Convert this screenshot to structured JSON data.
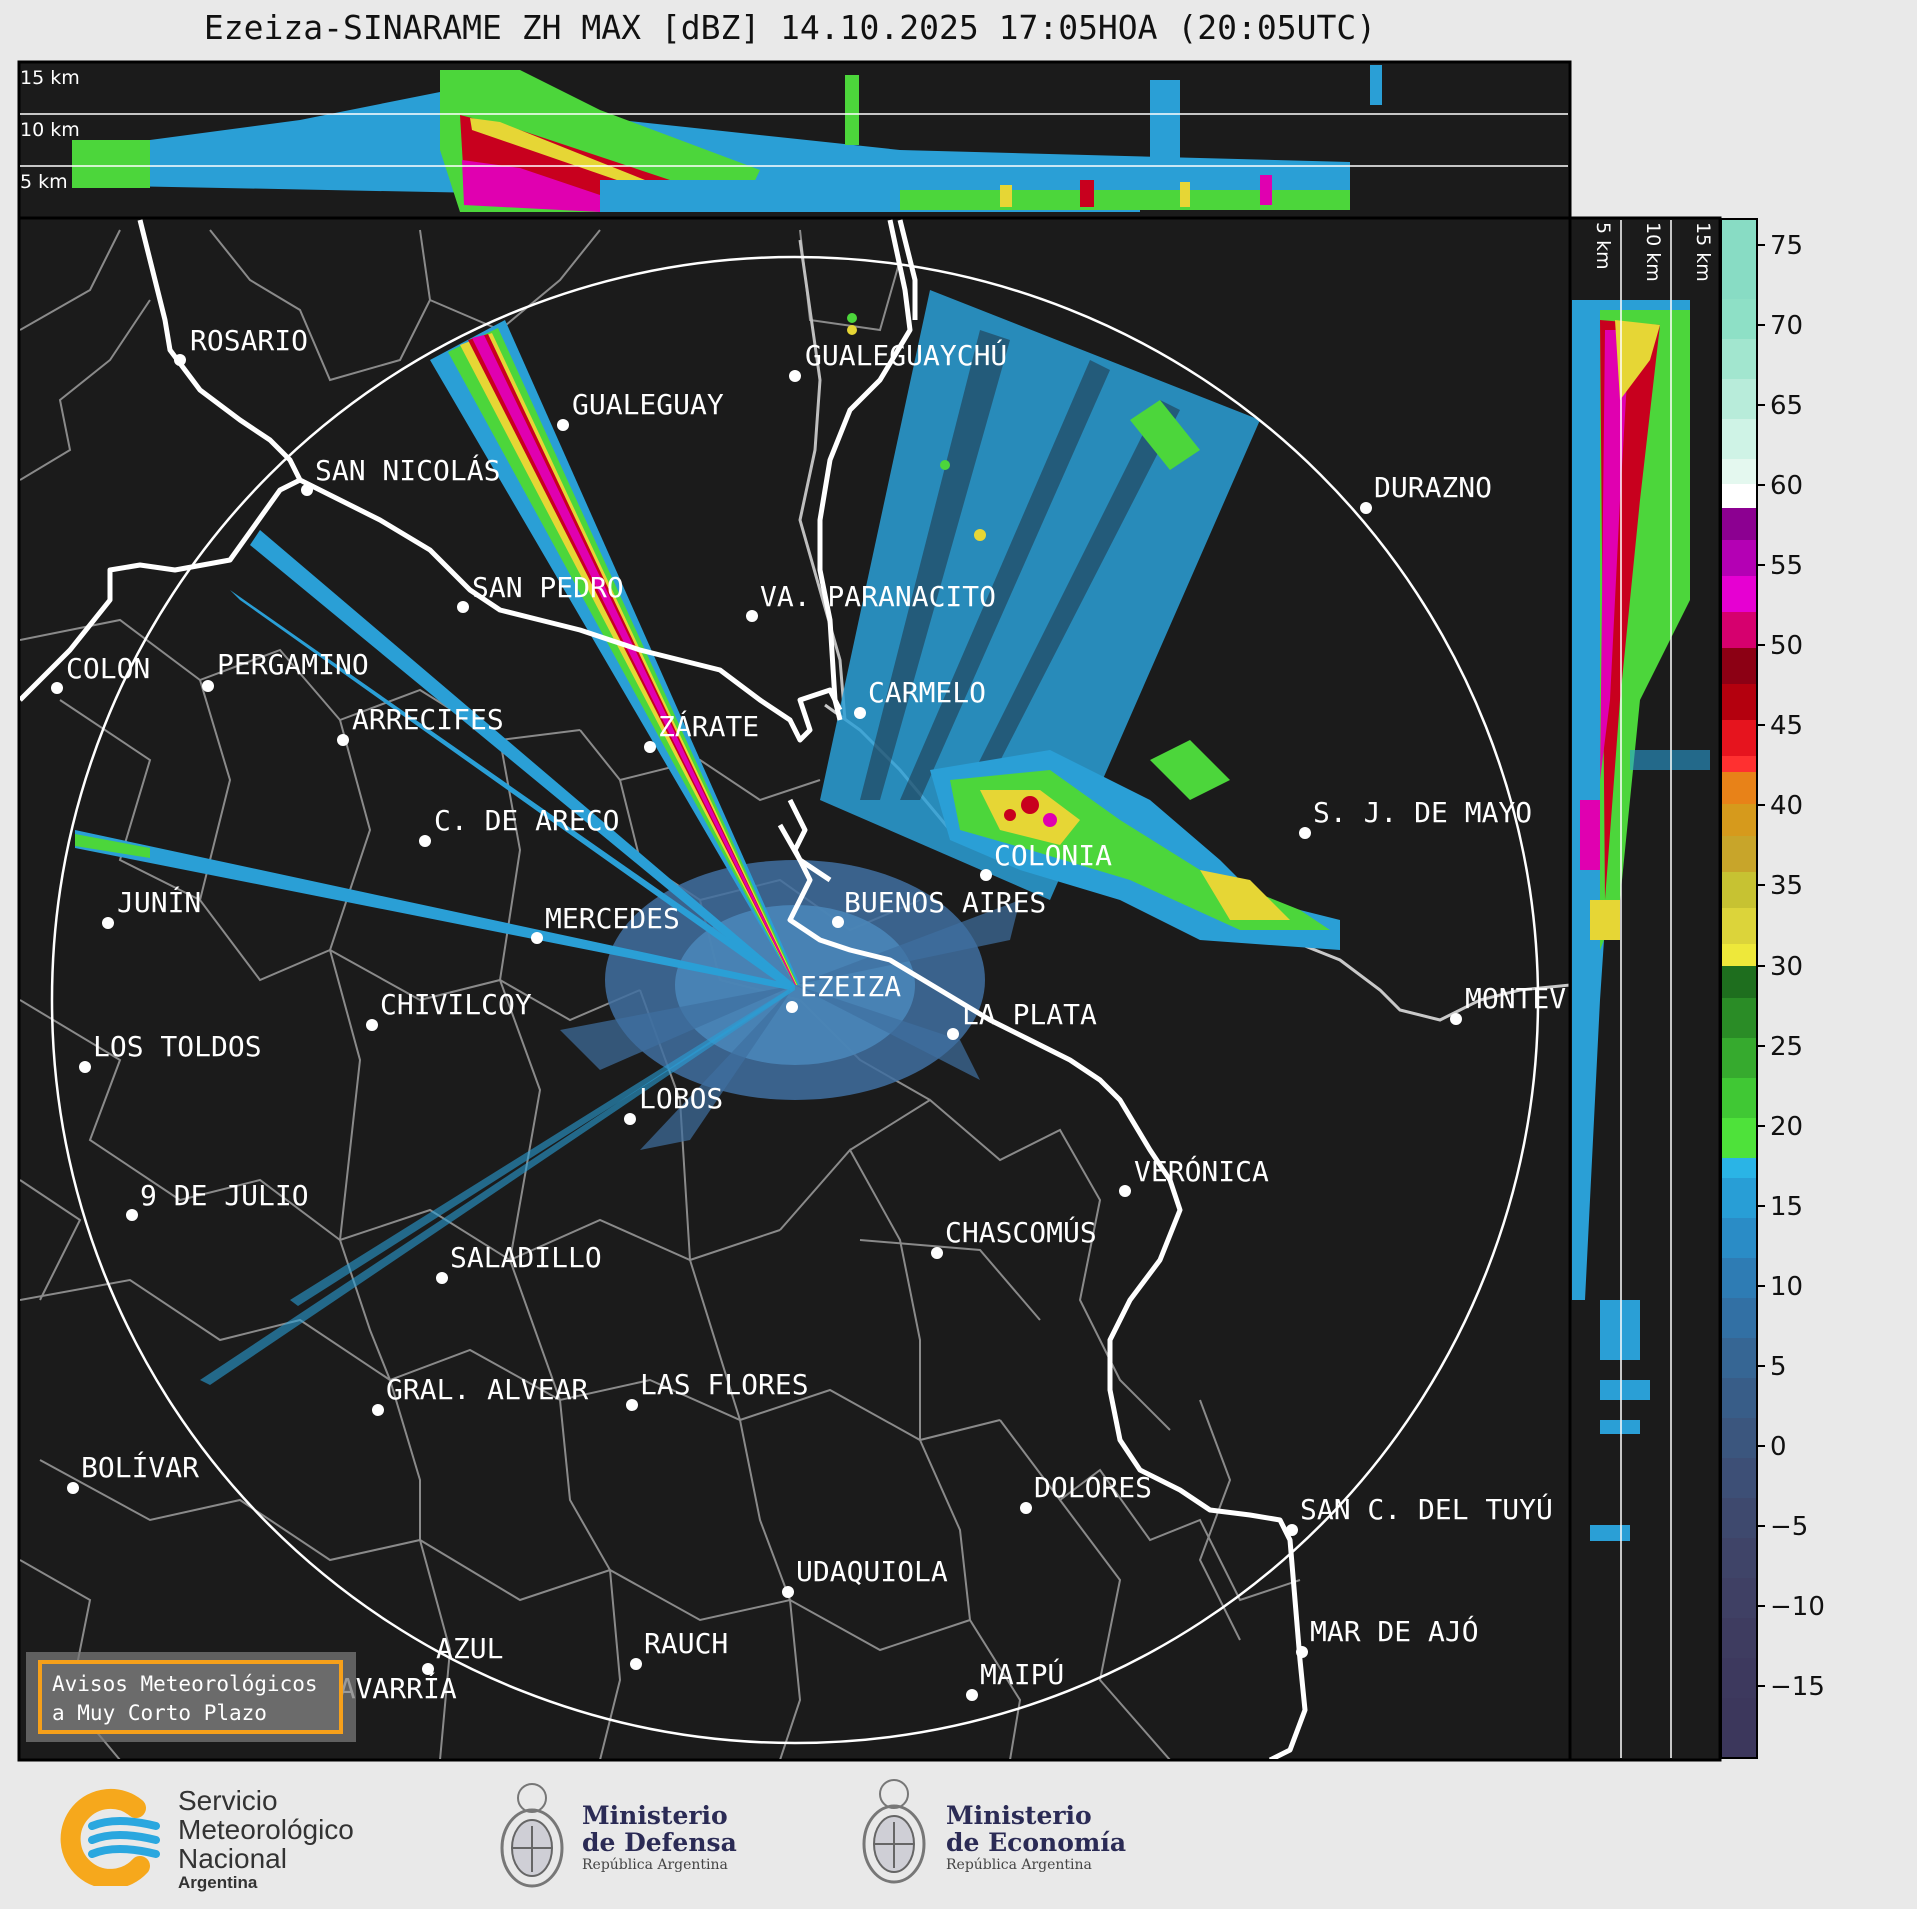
{
  "title": "Ezeiza-SINARAME ZH MAX [dBZ] 14.10.2025 17:05HOA (20:05UTC)",
  "top_panel_km_labels": [
    "15 km",
    "10 km",
    "5 km"
  ],
  "side_panel_km_labels": [
    "5 km",
    "10 km",
    "15 km"
  ],
  "colorbar": {
    "unit": "dBZ",
    "ticks": [
      "75",
      "70",
      "65",
      "60",
      "55",
      "50",
      "45",
      "40",
      "35",
      "30",
      "25",
      "20",
      "15",
      "10",
      "5",
      "0",
      "−5",
      "−10",
      "−15"
    ]
  },
  "cities": [
    {
      "name": "ROSARIO"
    },
    {
      "name": "GUALEGUAYCHÚ"
    },
    {
      "name": "GUALEGUAY"
    },
    {
      "name": "SAN NICOLÁS"
    },
    {
      "name": "DURAZNO"
    },
    {
      "name": "SAN PEDRO"
    },
    {
      "name": "VA. PARANACITO"
    },
    {
      "name": "COLON"
    },
    {
      "name": "PERGAMINO"
    },
    {
      "name": "CARMELO"
    },
    {
      "name": "ARRECIFES"
    },
    {
      "name": "ZÁRATE"
    },
    {
      "name": "S. J. DE MAYO"
    },
    {
      "name": "C. DE ARECO"
    },
    {
      "name": "COLONIA"
    },
    {
      "name": "BUENOS AIRES"
    },
    {
      "name": "JUNÍN"
    },
    {
      "name": "MERCEDES"
    },
    {
      "name": "MONTEVIDEO"
    },
    {
      "name": "EZEIZA"
    },
    {
      "name": "CHIVILCOY"
    },
    {
      "name": "LA PLATA"
    },
    {
      "name": "LOS TOLDOS"
    },
    {
      "name": "LOBOS"
    },
    {
      "name": "VERÓNICA"
    },
    {
      "name": "9 DE JULIO"
    },
    {
      "name": "CHASCOMÚS"
    },
    {
      "name": "SALADILLO"
    },
    {
      "name": "GRAL. ALVEAR"
    },
    {
      "name": "LAS FLORES"
    },
    {
      "name": "BOLÍVAR"
    },
    {
      "name": "DOLORES"
    },
    {
      "name": "SAN C. DEL TUYÚ"
    },
    {
      "name": "UDAQUIOLA"
    },
    {
      "name": "AZUL"
    },
    {
      "name": "RAUCH"
    },
    {
      "name": "MAR DE AJÓ"
    },
    {
      "name": "OLAVARRÍA"
    },
    {
      "name": "MAIPÚ"
    }
  ],
  "aviso": {
    "line1": "Avisos Meteorológicos",
    "line2": "a Muy Corto Plazo"
  },
  "logos": {
    "smn": {
      "line1": "Servicio",
      "line2": "Meteorológico",
      "line3": "Nacional",
      "line4": "Argentina"
    },
    "defensa": {
      "line1": "Ministerio",
      "line2": "de Defensa",
      "line3": "República Argentina"
    },
    "economia": {
      "line1": "Ministerio",
      "line2": "de Economía",
      "line3": "República Argentina"
    }
  },
  "colors": {
    "background": "#1b1b1b",
    "accent_border": "#f6a01a",
    "rivers": "#ffffff",
    "borders": "#8a8a8a"
  }
}
